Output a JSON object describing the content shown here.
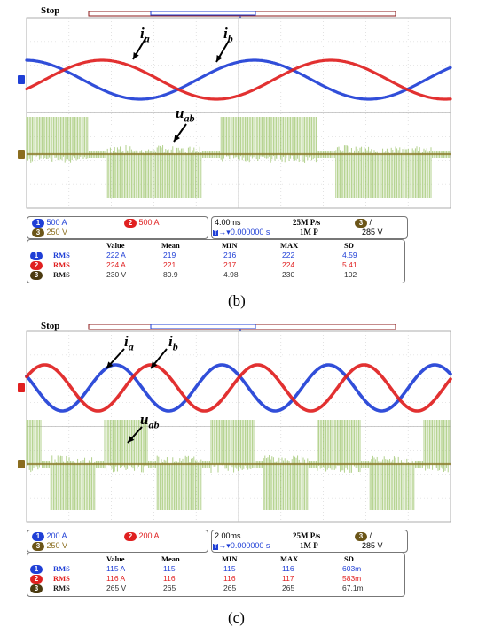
{
  "panels": [
    {
      "id": "b",
      "status": "Stop",
      "labels": {
        "ia_main": "i",
        "ia_sub": "a",
        "ib_main": "i",
        "ib_sub": "b",
        "uab_main": "u",
        "uab_sub": "ab"
      },
      "channels": [
        {
          "num": "1",
          "scale": "500 A",
          "color": "#1f3fd6"
        },
        {
          "num": "2",
          "scale": "500 A",
          "color": "#e02020"
        },
        {
          "num": "3",
          "scale": "250 V",
          "color": "#8a6d1f"
        }
      ],
      "timebase": "4.00ms",
      "trigger_pos": "0.000000 s",
      "sample_rate": "25M P/s",
      "record": "1M P",
      "trig_level": "285 V",
      "trig_ch": "3",
      "measure_headers": [
        "Value",
        "Mean",
        "MIN",
        "MAX",
        "SD"
      ],
      "measure_rows": [
        {
          "num": "1",
          "type": "RMS",
          "value": "222 A",
          "mean": "219",
          "min": "216",
          "max": "222",
          "sd": "4.59"
        },
        {
          "num": "2",
          "type": "RMS",
          "value": "224 A",
          "mean": "221",
          "min": "217",
          "max": "224",
          "sd": "5.41"
        },
        {
          "num": "3",
          "type": "RMS",
          "value": "230 V",
          "mean": "80.9",
          "min": "4.98",
          "max": "230",
          "sd": "102"
        }
      ],
      "caption": "(b)"
    },
    {
      "id": "c",
      "status": "Stop",
      "labels": {
        "ia_main": "i",
        "ia_sub": "a",
        "ib_main": "i",
        "ib_sub": "b",
        "uab_main": "u",
        "uab_sub": "ab"
      },
      "channels": [
        {
          "num": "1",
          "scale": "200 A",
          "color": "#1f3fd6"
        },
        {
          "num": "2",
          "scale": "200 A",
          "color": "#e02020"
        },
        {
          "num": "3",
          "scale": "250 V",
          "color": "#8a6d1f"
        }
      ],
      "timebase": "2.00ms",
      "trigger_pos": "0.000000 s",
      "sample_rate": "25M P/s",
      "record": "1M P",
      "trig_level": "285 V",
      "trig_ch": "3",
      "measure_headers": [
        "Value",
        "Mean",
        "MIN",
        "MAX",
        "SD"
      ],
      "measure_rows": [
        {
          "num": "1",
          "type": "RMS",
          "value": "115 A",
          "mean": "115",
          "min": "115",
          "max": "116",
          "sd": "603m"
        },
        {
          "num": "2",
          "type": "RMS",
          "value": "116 A",
          "mean": "116",
          "min": "116",
          "max": "117",
          "sd": "583m"
        },
        {
          "num": "3",
          "type": "RMS",
          "value": "265 V",
          "mean": "265",
          "min": "265",
          "max": "265",
          "sd": "67.1m"
        }
      ],
      "caption": "(c)"
    }
  ],
  "colors": {
    "ia": "#1f3fd6",
    "ib": "#e02020",
    "uab": "#8a7a2a",
    "uab_fill": "#9cc46a",
    "grid": "#cfcfcf",
    "frame": "#8b1a1a"
  }
}
